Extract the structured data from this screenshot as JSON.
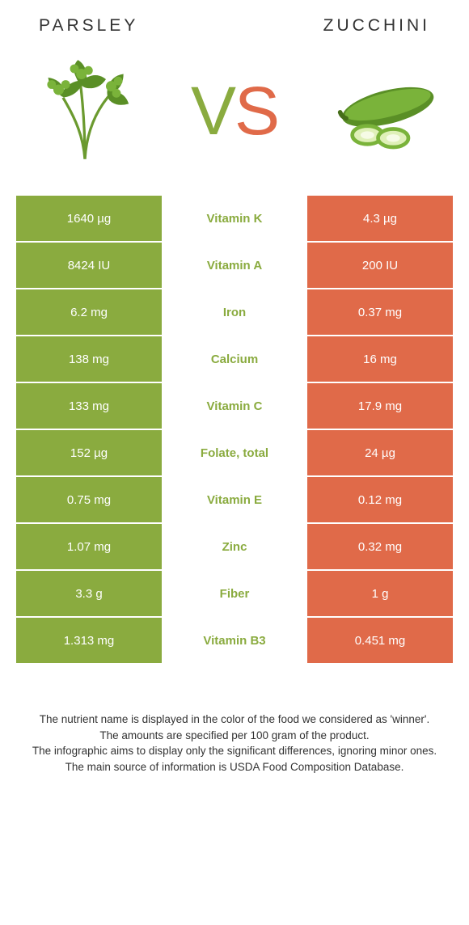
{
  "colors": {
    "left": "#8aab3f",
    "right": "#e06a49",
    "text": "#333333"
  },
  "header": {
    "left_title": "Parsley",
    "right_title": "Zucchini"
  },
  "vs": {
    "v": "V",
    "s": "S"
  },
  "table": {
    "left_bg": "#8aab3f",
    "right_bg": "#e06a49",
    "rows": [
      {
        "left": "1640 µg",
        "label": "Vitamin K",
        "right": "4.3 µg",
        "winner": "left"
      },
      {
        "left": "8424 IU",
        "label": "Vitamin A",
        "right": "200 IU",
        "winner": "left"
      },
      {
        "left": "6.2 mg",
        "label": "Iron",
        "right": "0.37 mg",
        "winner": "left"
      },
      {
        "left": "138 mg",
        "label": "Calcium",
        "right": "16 mg",
        "winner": "left"
      },
      {
        "left": "133 mg",
        "label": "Vitamin C",
        "right": "17.9 mg",
        "winner": "left"
      },
      {
        "left": "152 µg",
        "label": "Folate, total",
        "right": "24 µg",
        "winner": "left"
      },
      {
        "left": "0.75 mg",
        "label": "Vitamin E",
        "right": "0.12 mg",
        "winner": "left"
      },
      {
        "left": "1.07 mg",
        "label": "Zinc",
        "right": "0.32 mg",
        "winner": "left"
      },
      {
        "left": "3.3 g",
        "label": "Fiber",
        "right": "1 g",
        "winner": "left"
      },
      {
        "left": "1.313 mg",
        "label": "Vitamin B3",
        "right": "0.451 mg",
        "winner": "left"
      }
    ]
  },
  "footnotes": [
    "The nutrient name is displayed in the color of the food we considered as 'winner'.",
    "The amounts are specified per 100 gram of the product.",
    "The infographic aims to display only the significant differences, ignoring minor ones.",
    "The main source of information is USDA Food Composition Database."
  ]
}
